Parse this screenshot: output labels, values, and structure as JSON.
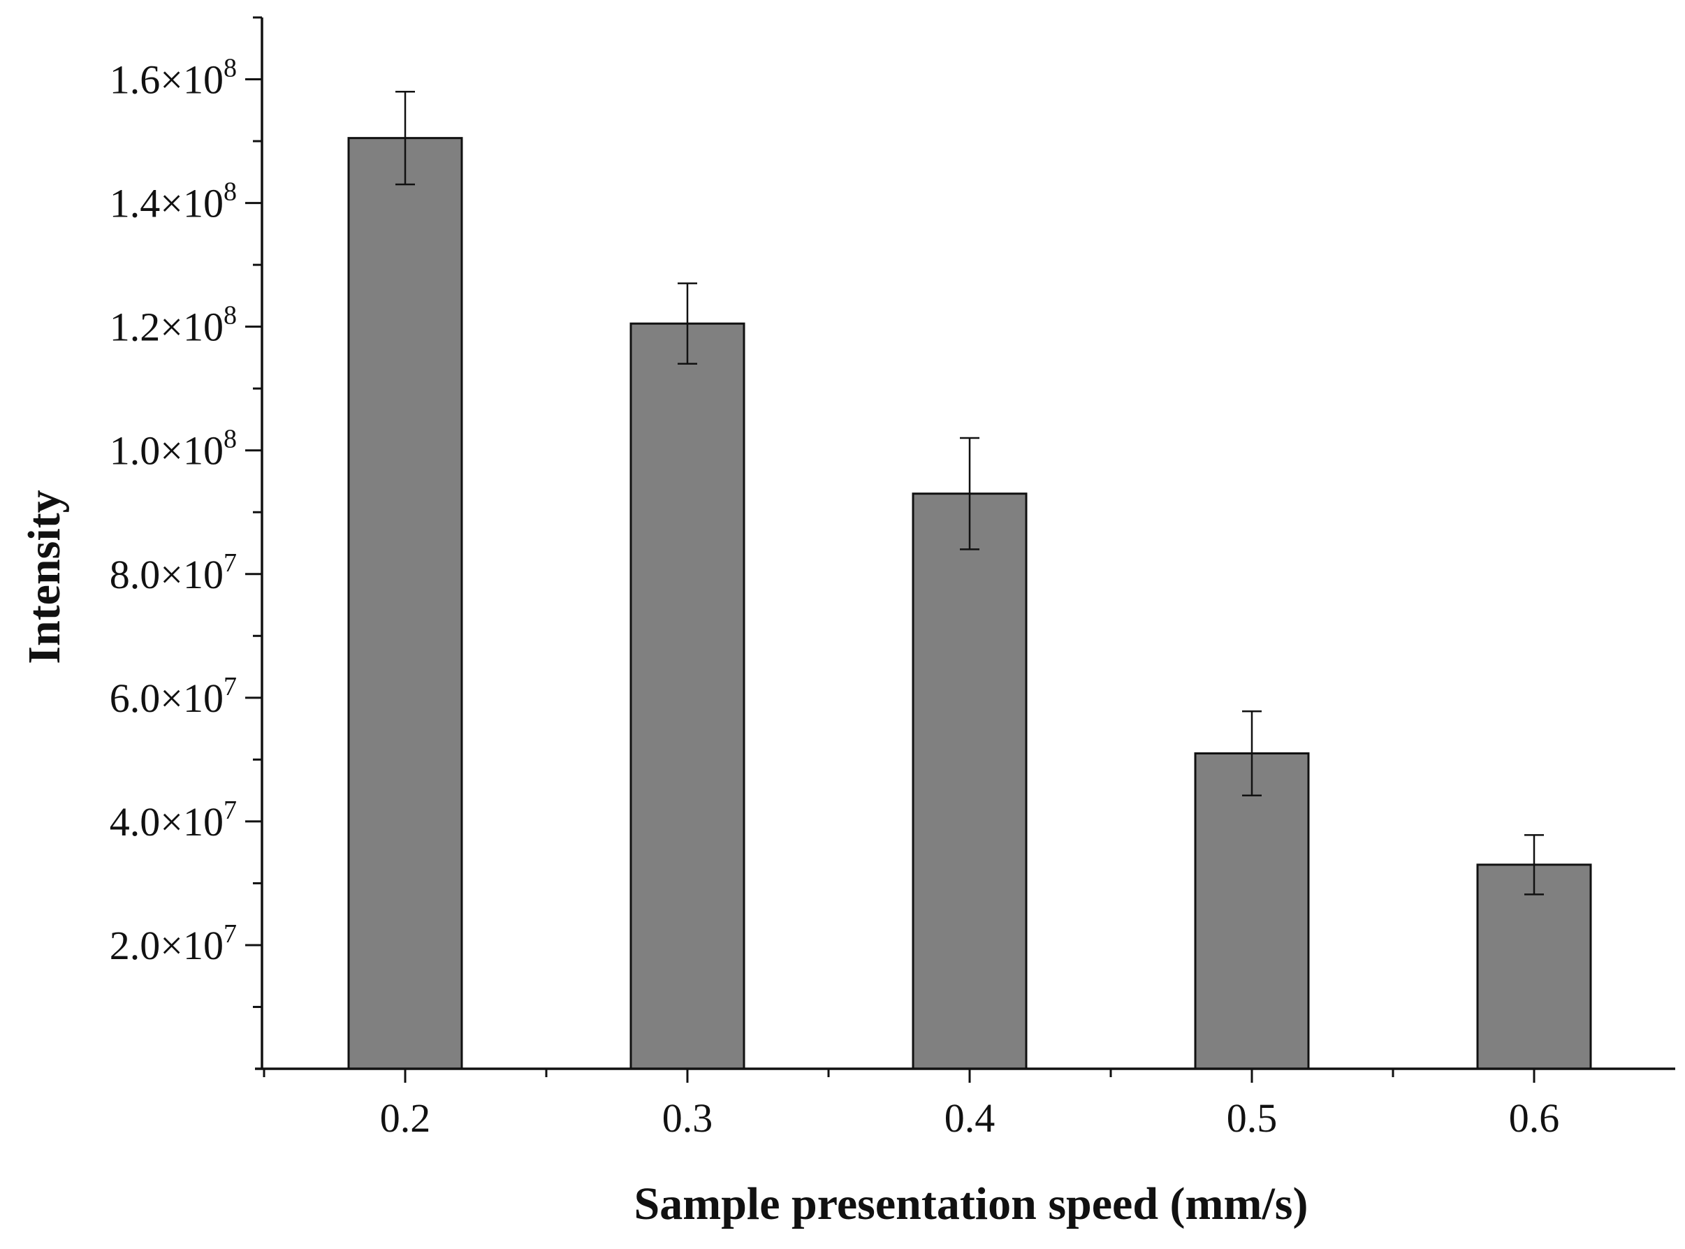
{
  "chart_data": {
    "type": "bar",
    "title": "",
    "xlabel": "Sample presentation speed (mm/s)",
    "ylabel": "Intensity",
    "categories": [
      "0.2",
      "0.3",
      "0.4",
      "0.5",
      "0.6"
    ],
    "values": [
      150500000,
      120500000,
      93000000,
      51000000,
      33000000
    ],
    "errors": [
      7500000,
      6500000,
      9000000,
      6800000,
      4800000
    ],
    "ylim": [
      0,
      170000000
    ],
    "y_ticks": [
      {
        "value": 20000000,
        "mantissa": "2.0",
        "exponent": "7"
      },
      {
        "value": 40000000,
        "mantissa": "4.0",
        "exponent": "7"
      },
      {
        "value": 60000000,
        "mantissa": "6.0",
        "exponent": "7"
      },
      {
        "value": 80000000,
        "mantissa": "8.0",
        "exponent": "7"
      },
      {
        "value": 100000000,
        "mantissa": "1.0",
        "exponent": "8"
      },
      {
        "value": 120000000,
        "mantissa": "1.2",
        "exponent": "8"
      },
      {
        "value": 140000000,
        "mantissa": "1.4",
        "exponent": "8"
      },
      {
        "value": 160000000,
        "mantissa": "1.6",
        "exponent": "8"
      }
    ],
    "bar_color": "#808080",
    "bar_edge_color": "#111111",
    "axis_color": "#111111",
    "grid": false
  }
}
